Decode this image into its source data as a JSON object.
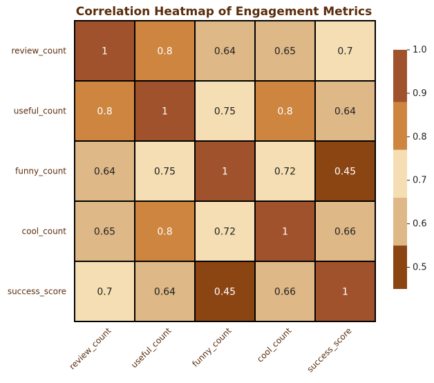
{
  "chart_data": {
    "type": "heatmap",
    "title": "Correlation Heatmap of Engagement Metrics",
    "row_labels": [
      "review_count",
      "useful_count",
      "funny_count",
      "cool_count",
      "success_score"
    ],
    "col_labels": [
      "review_count",
      "useful_count",
      "funny_count",
      "cool_count",
      "success_score"
    ],
    "values": [
      [
        1,
        0.8,
        0.64,
        0.65,
        0.7
      ],
      [
        0.8,
        1,
        0.75,
        0.8,
        0.64
      ],
      [
        0.64,
        0.75,
        1,
        0.72,
        0.45
      ],
      [
        0.65,
        0.8,
        0.72,
        1,
        0.66
      ],
      [
        0.7,
        0.64,
        0.45,
        0.66,
        1
      ]
    ],
    "value_labels": [
      [
        "1",
        "0.8",
        "0.64",
        "0.65",
        "0.7"
      ],
      [
        "0.8",
        "1",
        "0.75",
        "0.8",
        "0.64"
      ],
      [
        "0.64",
        "0.75",
        "1",
        "0.72",
        "0.45"
      ],
      [
        "0.65",
        "0.8",
        "0.72",
        "1",
        "0.66"
      ],
      [
        "0.7",
        "0.64",
        "0.45",
        "0.66",
        "1"
      ]
    ],
    "colorbar": {
      "range": [
        0.45,
        1.0
      ],
      "ticks": [
        "1.0",
        "0.9",
        "0.8",
        "0.7",
        "0.6",
        "0.5"
      ],
      "bins": [
        {
          "from": 0.45,
          "to": 0.55,
          "color": "#8b4513"
        },
        {
          "from": 0.55,
          "to": 0.66,
          "color": "#deb887"
        },
        {
          "from": 0.66,
          "to": 0.77,
          "color": "#f5deb3"
        },
        {
          "from": 0.77,
          "to": 0.88,
          "color": "#cd853f"
        },
        {
          "from": 0.88,
          "to": 1.0,
          "color": "#a0522d"
        }
      ]
    },
    "colors": {
      "dark_text": "#222222",
      "light_text": "#ffffff",
      "cell_border": "#000000",
      "title": "#5a2d0c",
      "tick": "#5a2d0c"
    }
  }
}
